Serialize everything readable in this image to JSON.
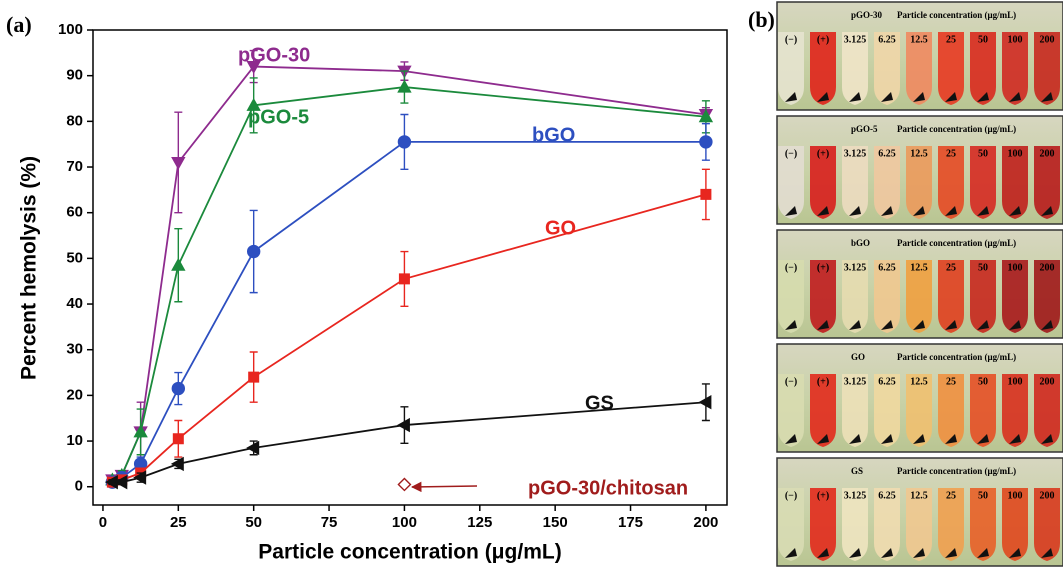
{
  "panel_labels": [
    "(a)",
    "(b)"
  ],
  "chart_data": {
    "type": "line",
    "x_label": "Particle concentration (μg/mL)",
    "y_label": "Percent hemolysis (%)",
    "x": [
      3.125,
      6.25,
      12.5,
      25,
      50,
      100,
      200
    ],
    "series": [
      {
        "name": "pGO-30",
        "color": "#8e2b8e",
        "marker": "triangle-down",
        "values": [
          1.5,
          2.5,
          12,
          71,
          92,
          91,
          81.5
        ],
        "errors": [
          0.5,
          1,
          6.5,
          11,
          3.5,
          2,
          1.5
        ]
      },
      {
        "name": "pGO-5",
        "color": "#1b8a3c",
        "marker": "triangle-up",
        "values": [
          1.5,
          2.5,
          12,
          48.5,
          83.5,
          87.5,
          81
        ],
        "errors": [
          0.5,
          1,
          5,
          8,
          6,
          3.5,
          3.5
        ]
      },
      {
        "name": "bGO",
        "color": "#2d4fc0",
        "marker": "circle",
        "values": [
          1,
          2,
          5,
          21.5,
          51.5,
          75.5,
          75.5
        ],
        "errors": [
          0.5,
          1,
          1.5,
          3.5,
          9,
          6,
          4
        ]
      },
      {
        "name": "GO",
        "color": "#e8261f",
        "marker": "square",
        "values": [
          1,
          1.5,
          3,
          10.5,
          24,
          45.5,
          64
        ],
        "errors": [
          0.5,
          0.5,
          1,
          4,
          5.5,
          6,
          5.5
        ]
      },
      {
        "name": "GS",
        "color": "#111111",
        "marker": "triangle-left",
        "values": [
          1,
          1,
          2,
          5,
          8.5,
          13.5,
          18.5
        ],
        "errors": [
          0.5,
          0.5,
          1,
          1,
          1.5,
          4,
          4
        ]
      },
      {
        "name": "pGO-30/chitosan",
        "color": "#a01c1c",
        "marker": "diamond",
        "x": [
          100
        ],
        "values": [
          0.5
        ],
        "errors": [
          0.3
        ]
      }
    ],
    "xlim": [
      -3.3,
      207
    ],
    "ylim": [
      -4,
      100
    ],
    "xticks": [
      0,
      25,
      50,
      75,
      100,
      125,
      150,
      175,
      200
    ],
    "yticks": [
      0,
      10,
      20,
      30,
      40,
      50,
      60,
      70,
      80,
      90,
      100
    ]
  },
  "panel_b": {
    "caption": "Particle concentration (μg/mL)",
    "columns": [
      "(−)",
      "(+)",
      "3.125",
      "6.25",
      "12.5",
      "25",
      "50",
      "100",
      "200"
    ],
    "rows": [
      "pGO-30",
      "pGO-5",
      "bGO",
      "GO",
      "GS"
    ]
  }
}
